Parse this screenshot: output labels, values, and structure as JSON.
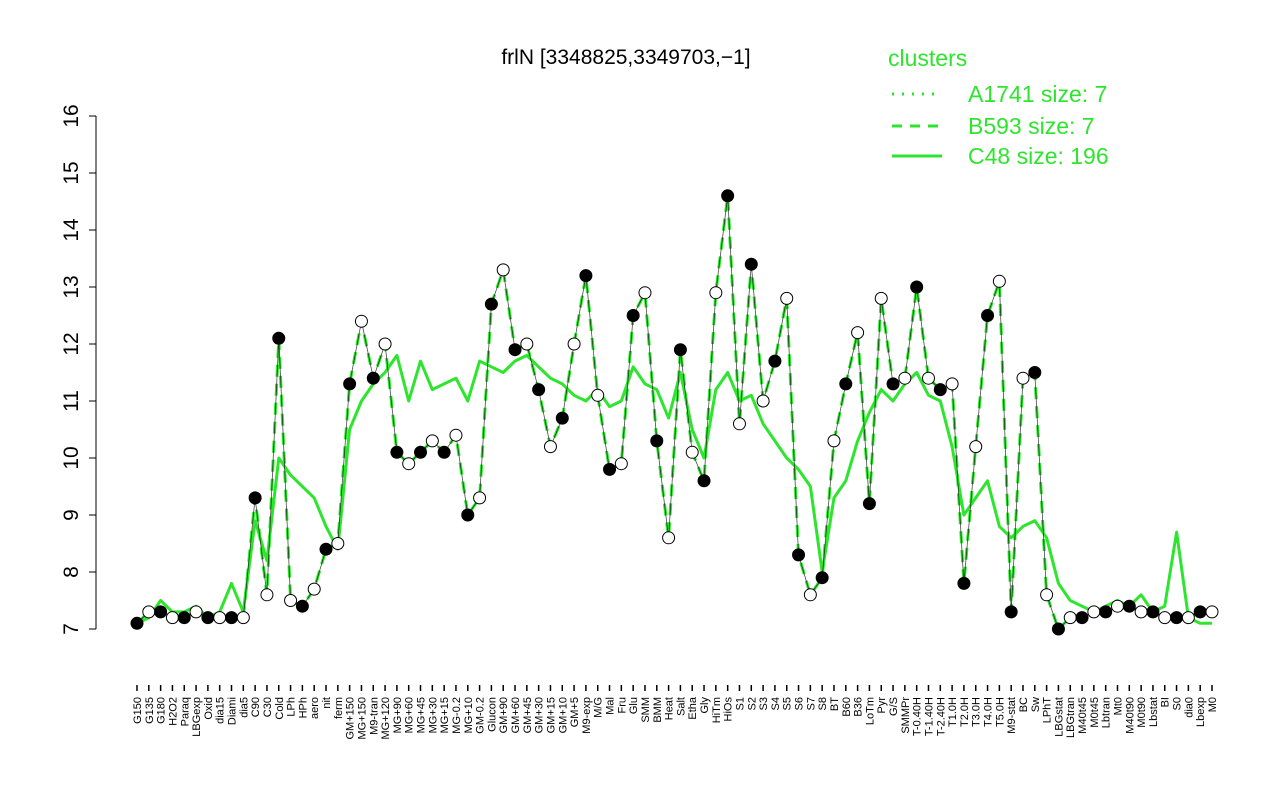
{
  "chart_data": {
    "type": "line",
    "title": "frlN [3348825,3349703,−1]",
    "xlabel": "",
    "ylabel": "",
    "ylim": [
      7,
      16
    ],
    "yticks": [
      7,
      8,
      9,
      10,
      11,
      12,
      13,
      14,
      15,
      16
    ],
    "grid": false,
    "legend_placement": "top-right",
    "legend": {
      "title": "clusters",
      "entries": [
        {
          "label": "A1741 size: 7",
          "style": "dotted"
        },
        {
          "label": "B593 size: 7",
          "style": "dashed"
        },
        {
          "label": "C48 size: 196",
          "style": "solid"
        }
      ]
    },
    "colors": {
      "series": "#2ee52e",
      "points_filled": "#000000",
      "points_open": "#ffffff",
      "connector": "#000000"
    },
    "x_tick_labels": [
      "G150",
      "G135",
      "G180",
      "H2O2",
      "Paraq",
      "LBGexp",
      "Oxid",
      "dia15",
      "Diami",
      "dia5",
      "C90",
      "C30",
      "Cold",
      "LPh",
      "HPh",
      "aero",
      "nit",
      "ferm",
      "GM+150",
      "MG+150",
      "M9-tran",
      "MG+120",
      "MG+90",
      "MG+60",
      "MG+45",
      "MG+30",
      "MG+15",
      "MG-0.2",
      "MG+10",
      "GM-0.2",
      "Glucon",
      "GM+90",
      "GM+60",
      "GM+45",
      "GM+30",
      "GM+15",
      "GM+10",
      "GM+5",
      "M9-exp",
      "M/G",
      "Mal",
      "Fru",
      "Glu",
      "SMM",
      "BMM",
      "Heat",
      "Salt",
      "Etha",
      "Gly",
      "HiTm",
      "HiOs",
      "S1",
      "S2",
      "S3",
      "S4",
      "S5",
      "S6",
      "S7",
      "S8",
      "BT",
      "B60",
      "B36",
      "LoTm",
      "Pyr",
      "G/S",
      "SMMPr",
      "T-0.40H",
      "T-1.40H",
      "T-2.40H",
      "T1.0H",
      "T2.0H",
      "T3.0H",
      "T4.0H",
      "T5.0H",
      "M9-stat",
      "BC",
      "Sw",
      "LPhT",
      "LBGstat",
      "LBGtran",
      "M40t45",
      "M0t45",
      "Lbtran",
      "Mt0",
      "M40t90",
      "M0t90",
      "Lbstat",
      "BI",
      "S0",
      "dia0",
      "Lbexp",
      "M0"
    ],
    "series": [
      {
        "name": "C48 size: 196",
        "style": "solid",
        "x": [
          0,
          1,
          2,
          3,
          4,
          5,
          6,
          7,
          8,
          9,
          10,
          11,
          12,
          13,
          14,
          15,
          16,
          17,
          18,
          19,
          20,
          21,
          22,
          23,
          24,
          25,
          26,
          27,
          28,
          29,
          30,
          31,
          32,
          33,
          34,
          35,
          36,
          37,
          38,
          39,
          40,
          41,
          42,
          43,
          44,
          45,
          46,
          47,
          48,
          49,
          50,
          51,
          52,
          53,
          54,
          55,
          56,
          57,
          58,
          59,
          60,
          61,
          62,
          63,
          64,
          65,
          66,
          67,
          68,
          69,
          70,
          71,
          72,
          73,
          74,
          75,
          76,
          77,
          78,
          79,
          80,
          81,
          82,
          83,
          84,
          85,
          86,
          87,
          88,
          89,
          90,
          91
        ],
        "y": [
          7.1,
          7.2,
          7.5,
          7.3,
          7.3,
          7.4,
          7.2,
          7.3,
          7.8,
          7.3,
          8.9,
          8.2,
          10.0,
          9.7,
          9.5,
          9.3,
          8.8,
          8.4,
          10.5,
          11.0,
          11.3,
          11.5,
          11.8,
          11.0,
          11.7,
          11.2,
          11.3,
          11.4,
          11.0,
          11.7,
          11.6,
          11.5,
          11.7,
          11.8,
          11.6,
          11.4,
          11.3,
          11.1,
          11.0,
          11.2,
          10.9,
          11.0,
          11.6,
          11.3,
          11.2,
          10.7,
          11.5,
          10.5,
          10.0,
          11.2,
          11.5,
          11.0,
          11.1,
          10.6,
          10.3,
          10.0,
          9.8,
          9.5,
          8.0,
          9.3,
          9.6,
          10.3,
          10.8,
          11.2,
          11.0,
          11.3,
          11.5,
          11.1,
          11.0,
          10.2,
          9.0,
          9.3,
          9.6,
          8.8,
          8.6,
          8.8,
          8.9,
          8.6,
          7.8,
          7.5,
          7.4,
          7.3,
          7.4,
          7.5,
          7.4,
          7.6,
          7.3,
          7.4,
          8.7,
          7.2,
          7.1,
          7.1
        ]
      },
      {
        "name": "B593 size: 7",
        "style": "dashed",
        "x": [
          0,
          1,
          2,
          3,
          4,
          5,
          6,
          7,
          8,
          9,
          10,
          11,
          12,
          13,
          14,
          15,
          16,
          17,
          18,
          19,
          20,
          21,
          22,
          23,
          24,
          25,
          26,
          27,
          28,
          29,
          30,
          31,
          32,
          33,
          34,
          35,
          36,
          37,
          38,
          39,
          40,
          41,
          42,
          43,
          44,
          45,
          46,
          47,
          48,
          49,
          50,
          51,
          52,
          53,
          54,
          55,
          56,
          57,
          58,
          59,
          60,
          61,
          62,
          63,
          64,
          65,
          66,
          67,
          68,
          69,
          70,
          71,
          72,
          73,
          74,
          75,
          76,
          77,
          78,
          79,
          80,
          81,
          82,
          83,
          84,
          85,
          86,
          87,
          88,
          89,
          90,
          91
        ],
        "y": [
          7.1,
          7.3,
          7.3,
          7.2,
          7.2,
          7.3,
          7.2,
          7.2,
          7.2,
          7.2,
          9.3,
          7.6,
          12.1,
          7.5,
          7.4,
          7.7,
          8.4,
          8.5,
          11.3,
          12.4,
          11.4,
          12.0,
          10.1,
          9.9,
          10.1,
          10.3,
          10.1,
          10.4,
          9.0,
          9.3,
          12.7,
          13.3,
          11.9,
          12.0,
          11.2,
          10.2,
          10.7,
          12.0,
          13.2,
          11.1,
          9.8,
          9.9,
          12.5,
          12.9,
          10.3,
          8.6,
          11.9,
          10.1,
          9.6,
          12.9,
          14.6,
          10.6,
          13.4,
          11.0,
          11.7,
          12.8,
          8.3,
          7.6,
          7.9,
          10.3,
          11.3,
          12.2,
          9.2,
          12.8,
          11.3,
          11.4,
          13.0,
          11.4,
          11.2,
          11.3,
          7.8,
          10.2,
          12.5,
          13.1,
          7.3,
          11.4,
          11.5,
          7.6,
          7.0,
          7.2,
          7.2,
          7.3,
          7.3,
          7.4,
          7.4,
          7.3,
          7.3,
          7.2,
          7.2,
          7.2,
          7.3,
          7.3
        ]
      }
    ]
  }
}
